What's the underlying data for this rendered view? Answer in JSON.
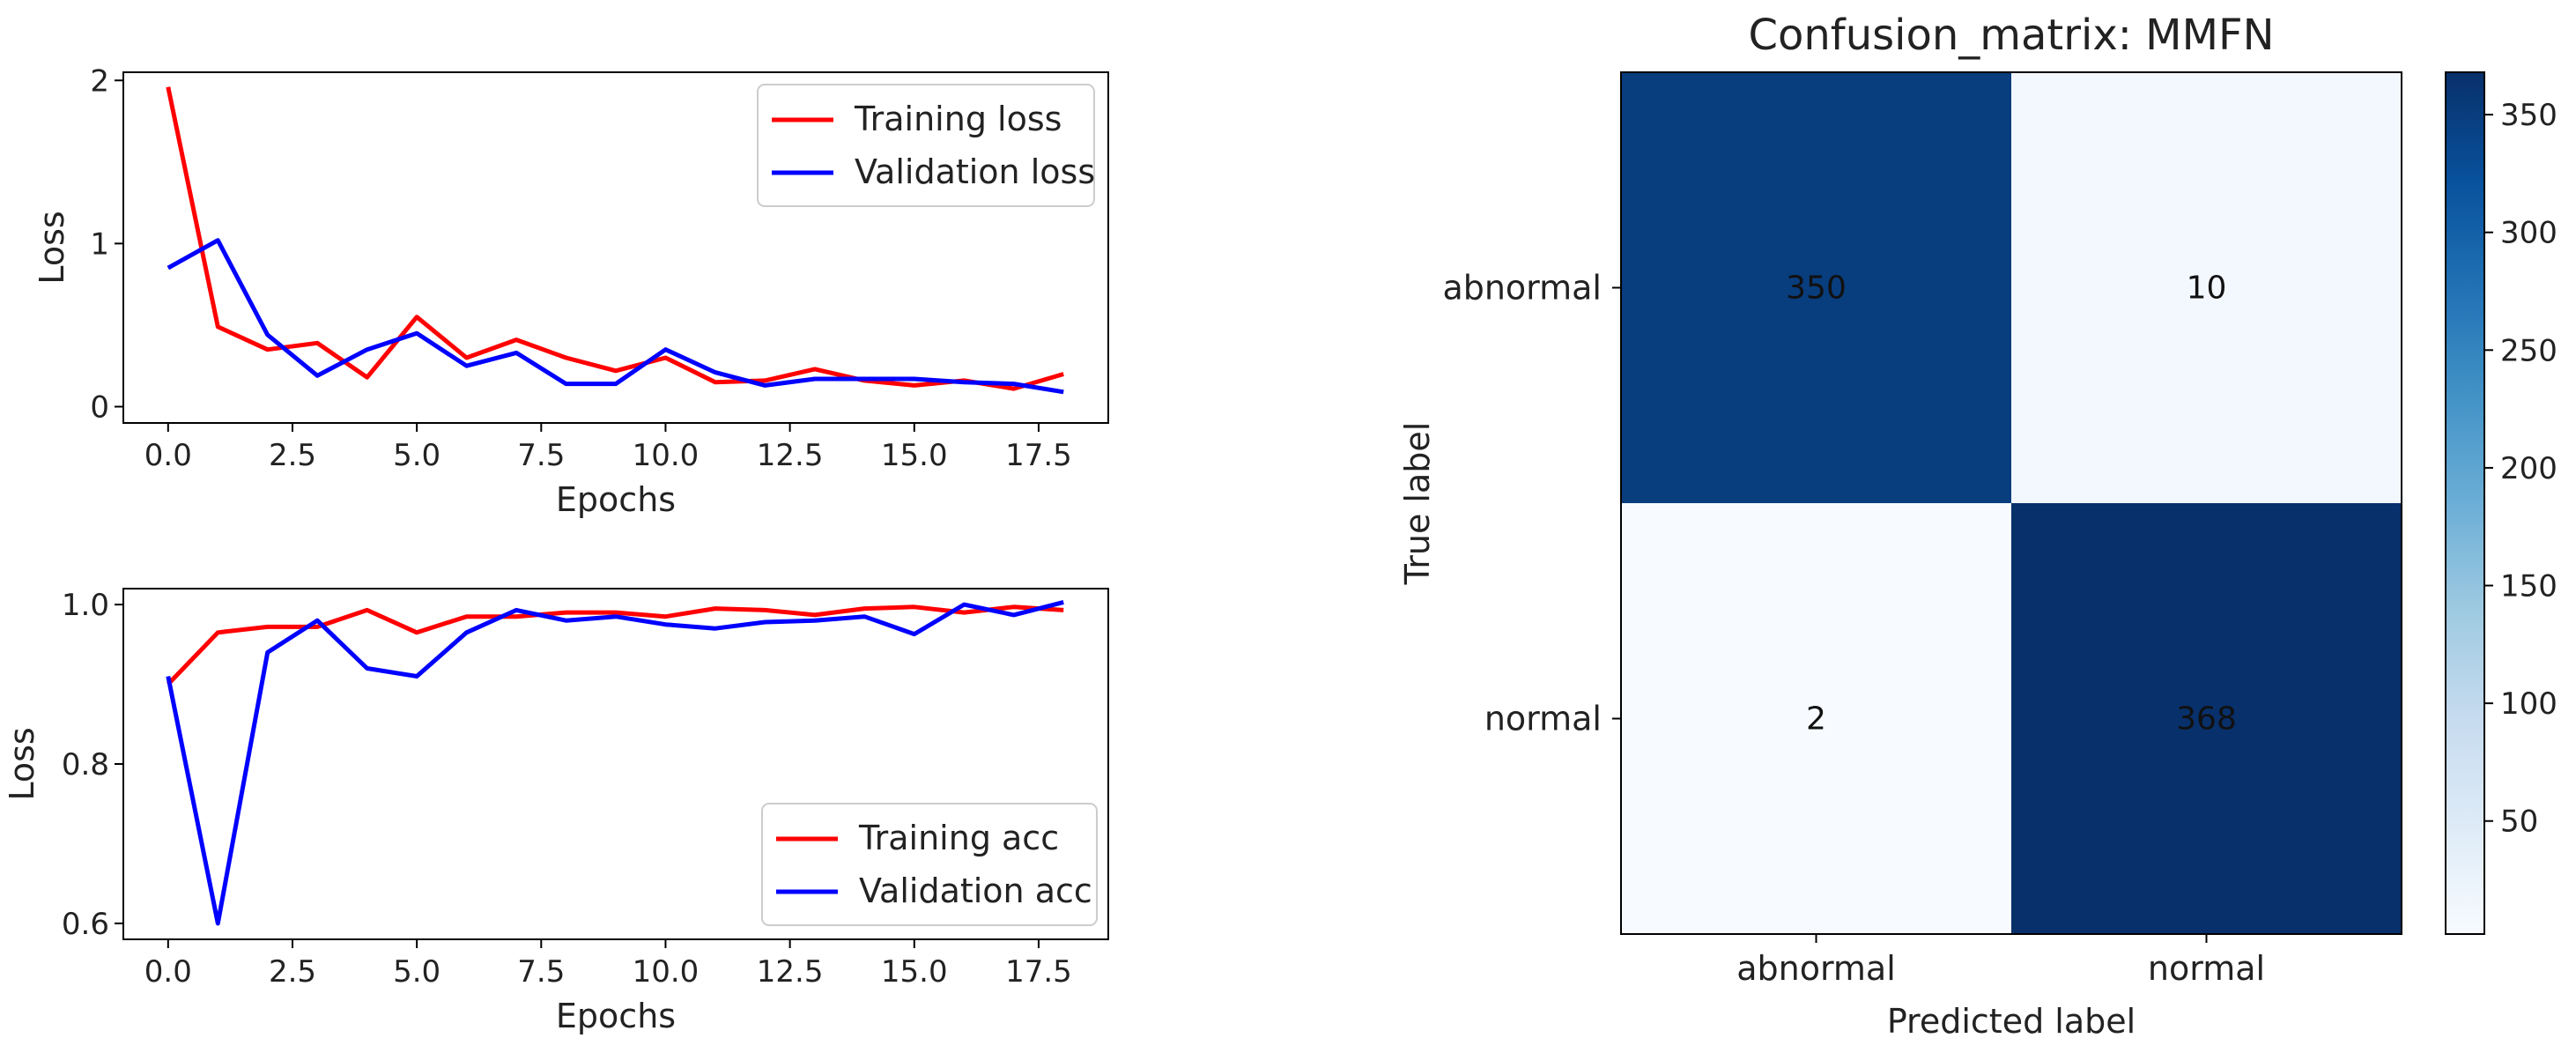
{
  "chart_data": [
    {
      "type": "line",
      "panel": "top-left",
      "xlabel": "Epochs",
      "ylabel": "Loss",
      "xlim": [
        -0.9,
        18.9
      ],
      "ylim": [
        -0.1,
        2.05
      ],
      "xticks": [
        0.0,
        2.5,
        5.0,
        7.5,
        10.0,
        12.5,
        15.0,
        17.5
      ],
      "xtick_labels": [
        "0.0",
        "2.5",
        "5.0",
        "7.5",
        "10.0",
        "12.5",
        "15.0",
        "17.5"
      ],
      "yticks": [
        0,
        1,
        2
      ],
      "ytick_labels": [
        "0",
        "1",
        "2"
      ],
      "legend_position": "top-right",
      "x": [
        0,
        1,
        2,
        3,
        4,
        5,
        6,
        7,
        8,
        9,
        10,
        11,
        12,
        13,
        14,
        15,
        16,
        17,
        18
      ],
      "series": [
        {
          "name": "Training loss",
          "color": "#ff0000",
          "values": [
            1.96,
            0.49,
            0.35,
            0.39,
            0.18,
            0.55,
            0.3,
            0.41,
            0.3,
            0.22,
            0.3,
            0.15,
            0.16,
            0.23,
            0.16,
            0.13,
            0.16,
            0.11,
            0.2
          ]
        },
        {
          "name": "Validation loss",
          "color": "#0000ff",
          "values": [
            0.85,
            1.02,
            0.44,
            0.19,
            0.35,
            0.45,
            0.25,
            0.33,
            0.14,
            0.14,
            0.35,
            0.21,
            0.13,
            0.17,
            0.17,
            0.17,
            0.15,
            0.14,
            0.09
          ]
        }
      ]
    },
    {
      "type": "line",
      "panel": "bottom-left",
      "xlabel": "Epochs",
      "ylabel": "Loss",
      "xlim": [
        -0.9,
        18.9
      ],
      "ylim": [
        0.58,
        1.02
      ],
      "xticks": [
        0.0,
        2.5,
        5.0,
        7.5,
        10.0,
        12.5,
        15.0,
        17.5
      ],
      "xtick_labels": [
        "0.0",
        "2.5",
        "5.0",
        "7.5",
        "10.0",
        "12.5",
        "15.0",
        "17.5"
      ],
      "yticks": [
        0.6,
        0.8,
        1.0
      ],
      "ytick_labels": [
        "0.6",
        "0.8",
        "1.0"
      ],
      "legend_position": "bottom-right",
      "x": [
        0,
        1,
        2,
        3,
        4,
        5,
        6,
        7,
        8,
        9,
        10,
        11,
        12,
        13,
        14,
        15,
        16,
        17,
        18
      ],
      "series": [
        {
          "name": "Training acc",
          "color": "#ff0000",
          "values": [
            0.9,
            0.965,
            0.972,
            0.972,
            0.993,
            0.965,
            0.985,
            0.985,
            0.99,
            0.99,
            0.985,
            0.995,
            0.993,
            0.987,
            0.995,
            0.997,
            0.99,
            0.997,
            0.993
          ]
        },
        {
          "name": "Validation acc",
          "color": "#0000ff",
          "values": [
            0.91,
            0.6,
            0.94,
            0.98,
            0.92,
            0.91,
            0.965,
            0.993,
            0.98,
            0.985,
            0.975,
            0.97,
            0.978,
            0.98,
            0.985,
            0.963,
            1.0,
            0.987,
            1.003
          ]
        }
      ]
    },
    {
      "type": "heatmap",
      "panel": "right",
      "title": "Confusion_matrix: MMFN",
      "xlabel": "Predicted label",
      "ylabel": "True label",
      "x_categories": [
        "abnormal",
        "normal"
      ],
      "y_categories": [
        "abnormal",
        "normal"
      ],
      "matrix": [
        [
          350,
          10
        ],
        [
          2,
          368
        ]
      ],
      "colormap": "Blues",
      "colorbar_range": [
        2,
        368
      ],
      "colorbar_ticks": [
        50,
        100,
        150,
        200,
        250,
        300,
        350
      ],
      "colorbar_tick_labels": [
        "50",
        "100",
        "150",
        "200",
        "250",
        "300",
        "350"
      ]
    }
  ]
}
